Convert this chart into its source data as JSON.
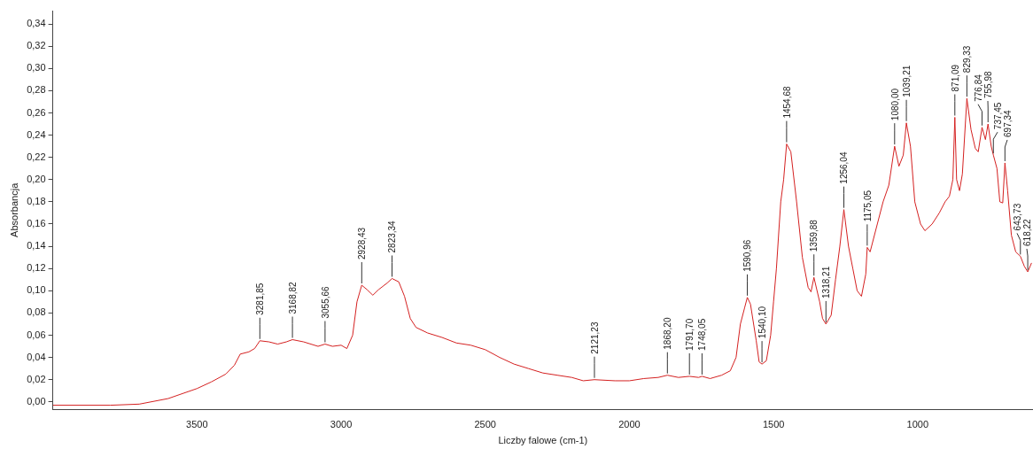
{
  "chart_data": {
    "type": "line",
    "xlabel": "Liczby falowe (cm-1)",
    "ylabel": "Absorbancja",
    "xlim": [
      4000,
      600
    ],
    "ylim": [
      -0.007,
      0.352
    ],
    "xticks": [
      3500,
      3000,
      2500,
      2000,
      1500,
      1000
    ],
    "yticks": [
      {
        "value": 0,
        "label": "0,00"
      },
      {
        "value": 0.02,
        "label": "0,02"
      },
      {
        "value": 0.04,
        "label": "0,04"
      },
      {
        "value": 0.06,
        "label": "0,06"
      },
      {
        "value": 0.08,
        "label": "0,08"
      },
      {
        "value": 0.1,
        "label": "0,10"
      },
      {
        "value": 0.12,
        "label": "0,12"
      },
      {
        "value": 0.14,
        "label": "0,14"
      },
      {
        "value": 0.16,
        "label": "0,16"
      },
      {
        "value": 0.18,
        "label": "0,18"
      },
      {
        "value": 0.2,
        "label": "0,20"
      },
      {
        "value": 0.22,
        "label": "0,22"
      },
      {
        "value": 0.24,
        "label": "0,24"
      },
      {
        "value": 0.26,
        "label": "0,26"
      },
      {
        "value": 0.28,
        "label": "0,28"
      },
      {
        "value": 0.3,
        "label": "0,30"
      },
      {
        "value": 0.32,
        "label": "0,32"
      },
      {
        "value": 0.34,
        "label": "0,34"
      }
    ],
    "grid": false,
    "legend": false,
    "marker": "none",
    "line_style": "solid",
    "series": [
      {
        "color": "#d42020",
        "x": [
          4000,
          3800,
          3700,
          3600,
          3500,
          3450,
          3400,
          3370,
          3350,
          3320,
          3300,
          3281.85,
          3250,
          3220,
          3190,
          3168.82,
          3130,
          3080,
          3055.66,
          3030,
          3000,
          2980,
          2960,
          2945,
          2928.43,
          2910,
          2890,
          2870,
          2840,
          2823.34,
          2800,
          2780,
          2760,
          2740,
          2700,
          2650,
          2600,
          2550,
          2500,
          2450,
          2400,
          2350,
          2300,
          2250,
          2200,
          2160,
          2121.23,
          2050,
          2000,
          1950,
          1900,
          1868.2,
          1830,
          1791.7,
          1760,
          1748.05,
          1720,
          1680,
          1650,
          1630,
          1615,
          1600,
          1590.96,
          1580,
          1560,
          1550,
          1540.1,
          1525,
          1510,
          1500,
          1490,
          1475,
          1465,
          1454.68,
          1440,
          1420,
          1400,
          1380,
          1370,
          1359.88,
          1340,
          1330,
          1318.21,
          1300,
          1285,
          1270,
          1256.04,
          1240,
          1225,
          1210,
          1195,
          1180,
          1175.05,
          1165,
          1140,
          1120,
          1100,
          1080,
          1065,
          1050,
          1039.21,
          1025,
          1010,
          990,
          975,
          950,
          925,
          905,
          890,
          878,
          871.09,
          865,
          855,
          845,
          829.33,
          815,
          800,
          790,
          776.84,
          765,
          755.98,
          745,
          737.45,
          725,
          715,
          705,
          697.34,
          688,
          675,
          660,
          643.73,
          630,
          618.22,
          605
        ],
        "values": [
          -0.003,
          -0.003,
          -0.002,
          0.003,
          0.012,
          0.018,
          0.025,
          0.033,
          0.043,
          0.045,
          0.048,
          0.055,
          0.054,
          0.052,
          0.054,
          0.056,
          0.054,
          0.05,
          0.052,
          0.05,
          0.051,
          0.048,
          0.06,
          0.09,
          0.105,
          0.101,
          0.096,
          0.101,
          0.107,
          0.111,
          0.108,
          0.095,
          0.075,
          0.067,
          0.062,
          0.058,
          0.053,
          0.051,
          0.047,
          0.04,
          0.034,
          0.03,
          0.026,
          0.024,
          0.022,
          0.019,
          0.02,
          0.019,
          0.019,
          0.021,
          0.022,
          0.024,
          0.022,
          0.023,
          0.022,
          0.023,
          0.021,
          0.024,
          0.028,
          0.04,
          0.07,
          0.085,
          0.094,
          0.088,
          0.055,
          0.036,
          0.034,
          0.037,
          0.06,
          0.09,
          0.12,
          0.18,
          0.2,
          0.232,
          0.225,
          0.18,
          0.13,
          0.103,
          0.099,
          0.112,
          0.09,
          0.075,
          0.07,
          0.078,
          0.11,
          0.14,
          0.173,
          0.14,
          0.12,
          0.1,
          0.095,
          0.115,
          0.139,
          0.135,
          0.16,
          0.18,
          0.195,
          0.23,
          0.212,
          0.222,
          0.251,
          0.23,
          0.18,
          0.16,
          0.154,
          0.16,
          0.17,
          0.18,
          0.185,
          0.2,
          0.256,
          0.2,
          0.19,
          0.205,
          0.273,
          0.245,
          0.228,
          0.225,
          0.247,
          0.236,
          0.25,
          0.23,
          0.222,
          0.21,
          0.18,
          0.179,
          0.215,
          0.19,
          0.15,
          0.135,
          0.131,
          0.122,
          0.117,
          0.125
        ]
      }
    ],
    "annotations": [
      {
        "text": "3281,85",
        "x": 3281.85,
        "y": 0.055
      },
      {
        "text": "3168,82",
        "x": 3168.82,
        "y": 0.056
      },
      {
        "text": "3055,66",
        "x": 3055.66,
        "y": 0.052
      },
      {
        "text": "2928,43",
        "x": 2928.43,
        "y": 0.105
      },
      {
        "text": "2823,34",
        "x": 2823.34,
        "y": 0.111
      },
      {
        "text": "2121,23",
        "x": 2121.23,
        "y": 0.02
      },
      {
        "text": "1868,20",
        "x": 1868.2,
        "y": 0.024
      },
      {
        "text": "1791,70",
        "x": 1791.7,
        "y": 0.023
      },
      {
        "text": "1748,05",
        "x": 1748.05,
        "y": 0.023
      },
      {
        "text": "1590,96",
        "x": 1590.96,
        "y": 0.094
      },
      {
        "text": "1540,10",
        "x": 1540.1,
        "y": 0.034
      },
      {
        "text": "1454,68",
        "x": 1454.68,
        "y": 0.232
      },
      {
        "text": "1359,88",
        "x": 1359.88,
        "y": 0.112
      },
      {
        "text": "1318,21",
        "x": 1318.21,
        "y": 0.07
      },
      {
        "text": "1256,04",
        "x": 1256.04,
        "y": 0.173
      },
      {
        "text": "1175,05",
        "x": 1175.05,
        "y": 0.139
      },
      {
        "text": "1080,00",
        "x": 1080,
        "y": 0.23
      },
      {
        "text": "1039,21",
        "x": 1039.21,
        "y": 0.251
      },
      {
        "text": "871,09",
        "x": 871.09,
        "y": 0.256
      },
      {
        "text": "829,33",
        "x": 829.33,
        "y": 0.273
      },
      {
        "text": "776,84",
        "x": 776.84,
        "y": 0.247
      },
      {
        "text": "755,98",
        "x": 755.98,
        "y": 0.25
      },
      {
        "text": "737,45",
        "x": 737.45,
        "y": 0.222
      },
      {
        "text": "697,34",
        "x": 697.34,
        "y": 0.215
      },
      {
        "text": "643,73",
        "x": 643.73,
        "y": 0.131
      },
      {
        "text": "618,22",
        "x": 618.22,
        "y": 0.117
      }
    ]
  }
}
